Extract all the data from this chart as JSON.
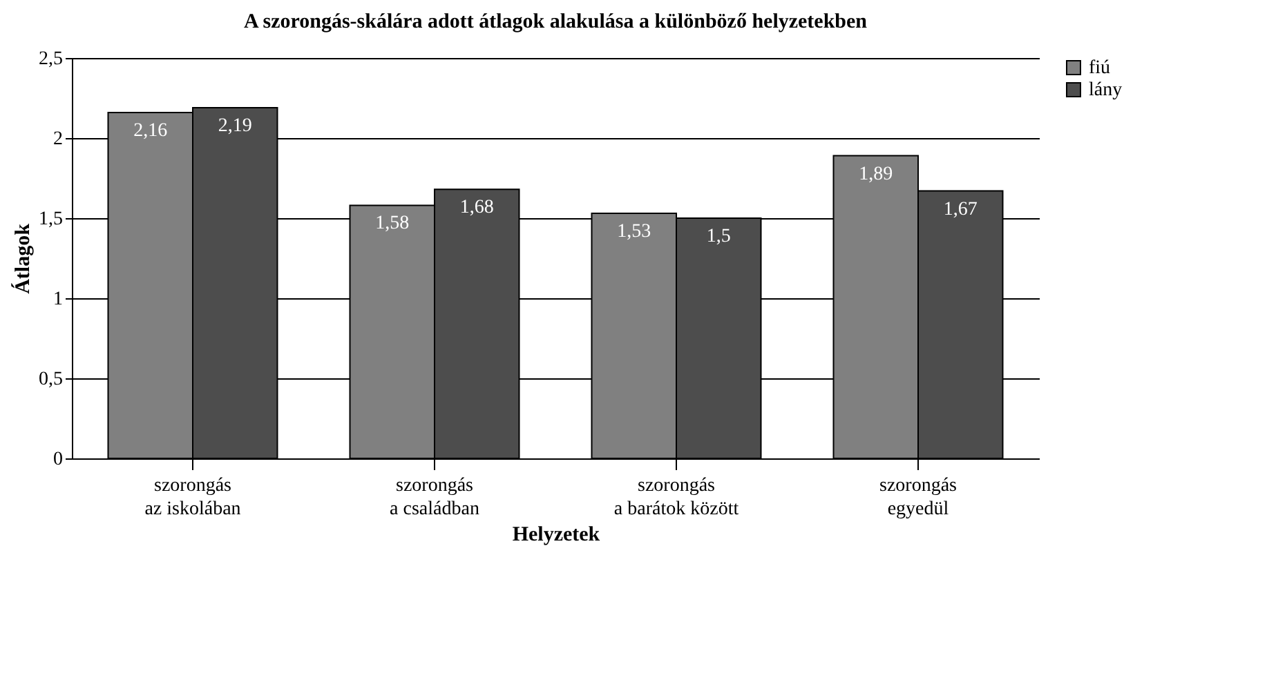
{
  "chart_data": {
    "type": "bar",
    "title": "A szorongás-skálára adott átlagok alakulása a különböző helyzetekben",
    "xlabel": "Helyzetek",
    "ylabel": "Átlagok",
    "categories": [
      "szorongás az iskolában",
      "szorongás a családban",
      "szorongás a barátok között",
      "szorongás egyedül"
    ],
    "series": [
      {
        "name": "fiú",
        "color": "#808080",
        "values": [
          2.16,
          1.58,
          1.53,
          1.89
        ],
        "value_labels": [
          "2,16",
          "1,58",
          "1,53",
          "1,89"
        ]
      },
      {
        "name": "lány",
        "color": "#4d4d4d",
        "values": [
          2.19,
          1.68,
          1.5,
          1.67
        ],
        "value_labels": [
          "2,19",
          "1,68",
          "1,5",
          "1,67"
        ]
      }
    ],
    "ylim": [
      0,
      2.5
    ],
    "yticks": [
      0,
      {
        "value": 0.5,
        "label": "0,5"
      },
      1,
      {
        "value": 1.5,
        "label": "1,5"
      },
      2,
      {
        "value": 2.5,
        "label": "2,5"
      }
    ],
    "grid": "y",
    "legend": "right"
  }
}
